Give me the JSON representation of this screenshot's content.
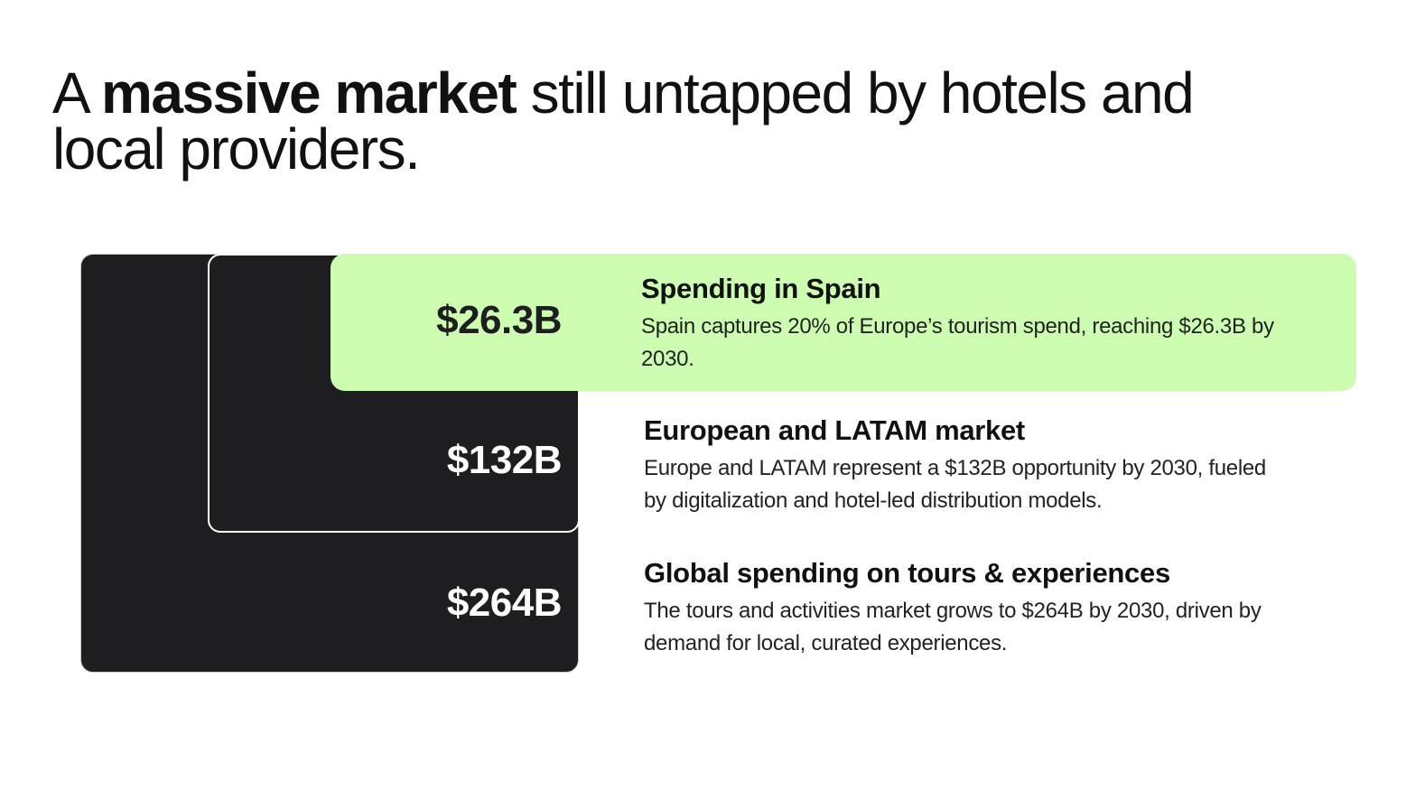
{
  "title": {
    "pre": "A ",
    "bold": "massive market",
    "post": " still untapped by hotels and local providers."
  },
  "colors": {
    "dark_box": "#1e1e20",
    "highlight": "#ccfdb0"
  },
  "tiers": [
    {
      "value": "$26.3B",
      "heading": "Spending in Spain",
      "text": "Spain captures 20% of Europe’s tourism spend, reaching $26.3B by 2030."
    },
    {
      "value": "$132B",
      "heading": "European and LATAM market",
      "text": "Europe and LATAM represent a $132B opportunity by 2030, fueled by digitalization and hotel-led distribution models."
    },
    {
      "value": "$264B",
      "heading": "Global spending on tours & experiences",
      "text": "The tours and activities market grows to $264B by 2030, driven by demand for local, curated experiences."
    }
  ]
}
